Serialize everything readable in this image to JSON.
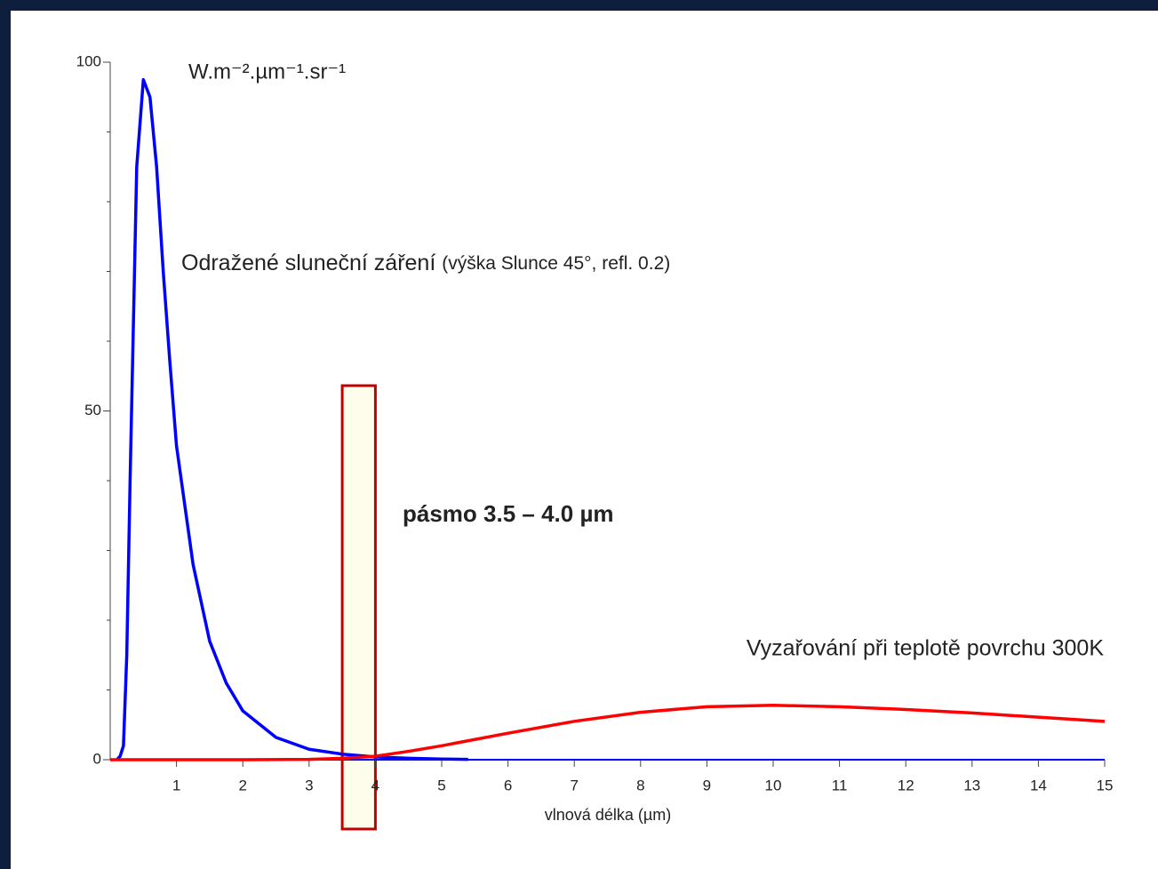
{
  "chart_data": {
    "type": "line",
    "ylabel": "W.m⁻².µm⁻¹.sr⁻¹",
    "xlabel": "vlnová délka (µm)",
    "annotations": [
      {
        "text": "Odražené sluneční záření",
        "detail": "(výška Slunce 45°, refl. 0.2)"
      },
      {
        "text": "Vyzařování při teplotě povrchu 300K"
      },
      {
        "text": "pásmo 3.5 – 4.0 µm",
        "band": [
          3.5,
          4.0
        ],
        "color": "#c00000"
      }
    ],
    "xlim": [
      0,
      15
    ],
    "xticks": [
      1,
      2,
      3,
      4,
      5,
      6,
      7,
      8,
      9,
      10,
      11,
      12,
      13,
      14,
      15
    ],
    "ylim": [
      0,
      100
    ],
    "yticks": [
      0,
      50,
      100
    ],
    "yminor_ticks": [
      10,
      20,
      30,
      40,
      60,
      70,
      80,
      90
    ],
    "series": [
      {
        "color": "#0000ff",
        "x": [
          0.1,
          0.15,
          0.2,
          0.25,
          0.3,
          0.4,
          0.5,
          0.6,
          0.7,
          0.8,
          0.9,
          1.0,
          1.25,
          1.5,
          1.75,
          2.0,
          2.5,
          3.0,
          3.5,
          4.0,
          4.5,
          5.0,
          5.4
        ],
        "values": [
          0,
          0.5,
          2,
          15,
          40,
          85,
          97.5,
          95,
          85,
          70,
          57,
          45,
          28,
          17,
          11,
          7,
          3.2,
          1.5,
          0.8,
          0.4,
          0.2,
          0.1,
          0.05
        ]
      },
      {
        "color": "#ff0000",
        "x": [
          0,
          1,
          2,
          3,
          3.5,
          4,
          4.5,
          5,
          6,
          7,
          8,
          9,
          10,
          11,
          12,
          13,
          14,
          15
        ],
        "values": [
          0,
          0,
          0,
          0.05,
          0.2,
          0.5,
          1.2,
          2,
          3.8,
          5.5,
          6.8,
          7.6,
          7.8,
          7.6,
          7.2,
          6.7,
          6.1,
          5.5
        ]
      }
    ]
  }
}
